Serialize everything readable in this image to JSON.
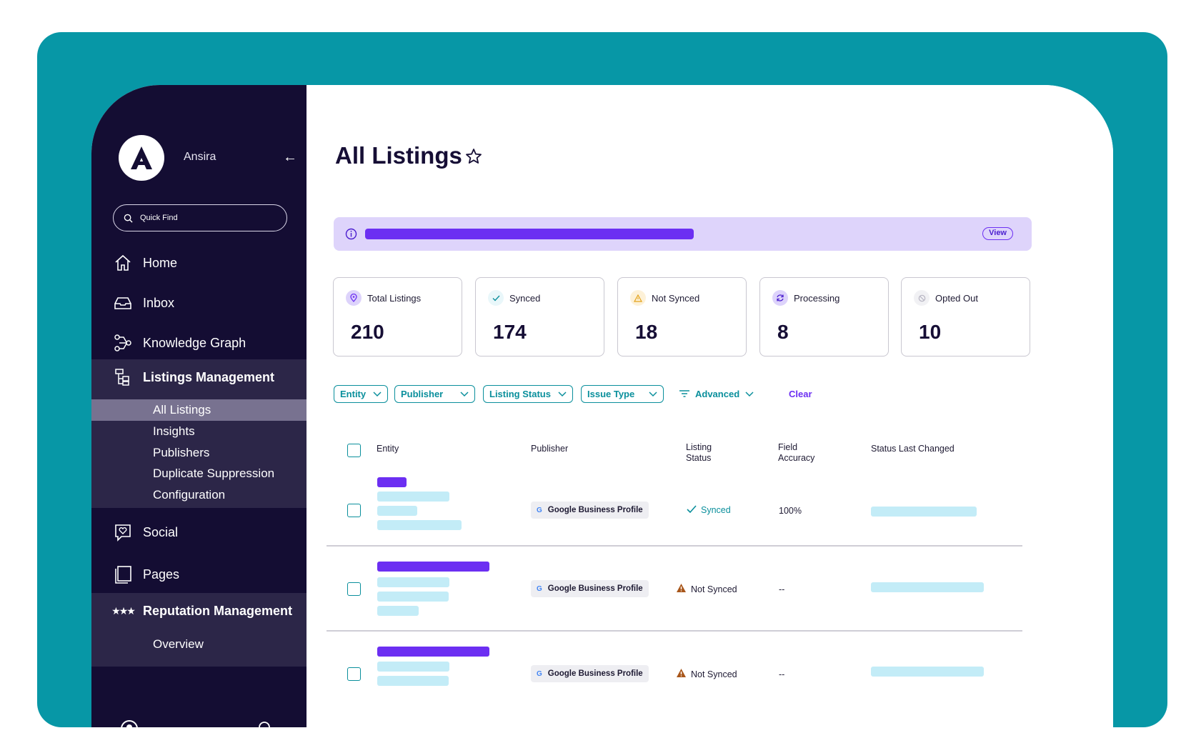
{
  "sidebar": {
    "org_name": "Ansira",
    "quick_find": "Quick Find",
    "nav": [
      {
        "label": "Home",
        "icon": "home-icon"
      },
      {
        "label": "Inbox",
        "icon": "inbox-icon"
      },
      {
        "label": "Knowledge Graph",
        "icon": "knowledge-graph-icon"
      },
      {
        "label": "Listings Management",
        "icon": "listings-icon"
      },
      {
        "label": "Social",
        "icon": "social-icon"
      },
      {
        "label": "Pages",
        "icon": "pages-icon"
      },
      {
        "label": "Reputation Management",
        "icon": "stars-icon"
      }
    ],
    "listings_sub": [
      "All Listings",
      "Insights",
      "Publishers",
      "Duplicate Suppression",
      "Configuration"
    ],
    "reputation_sub": [
      "Overview"
    ]
  },
  "page": {
    "title": "All Listings",
    "banner_action": "View"
  },
  "stats": [
    {
      "label": "Total Listings",
      "value": "210",
      "icon": "pin-icon"
    },
    {
      "label": "Synced",
      "value": "174",
      "icon": "check-icon"
    },
    {
      "label": "Not Synced",
      "value": "18",
      "icon": "warning-icon"
    },
    {
      "label": "Processing",
      "value": "8",
      "icon": "refresh-icon"
    },
    {
      "label": "Opted Out",
      "value": "10",
      "icon": "blocked-icon"
    }
  ],
  "filters": [
    "Entity",
    "Publisher",
    "Listing Status",
    "Issue Type"
  ],
  "advanced_label": "Advanced",
  "clear_label": "Clear",
  "table": {
    "headers": {
      "entity": "Entity",
      "publisher": "Publisher",
      "status_l1": "Listing",
      "status_l2": "Status",
      "accuracy_l1": "Field",
      "accuracy_l2": "Accuracy",
      "changed": "Status Last Changed"
    },
    "rows": [
      {
        "publisher": "Google Business Profile",
        "status": "Synced",
        "accuracy": "100%"
      },
      {
        "publisher": "Google Business Profile",
        "status": "Not Synced",
        "accuracy": "--"
      },
      {
        "publisher": "Google Business Profile",
        "status": "Not Synced",
        "accuracy": "--"
      }
    ]
  },
  "colors": {
    "background": "#0797a6",
    "sidebar": "#140d33",
    "accent": "#6c2ff2",
    "teal": "#0a8f9c"
  }
}
